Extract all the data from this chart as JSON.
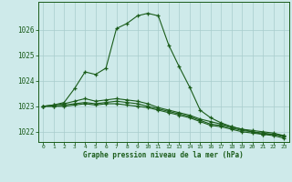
{
  "background_color": "#ceeaea",
  "plot_bg_color": "#ceeaea",
  "line_color": "#1a5c1a",
  "grid_color": "#a8cccc",
  "xlabel": "Graphe pression niveau de la mer (hPa)",
  "xlim": [
    -0.5,
    23.5
  ],
  "ylim": [
    1021.6,
    1027.1
  ],
  "yticks": [
    1022,
    1023,
    1024,
    1025,
    1026
  ],
  "xticks": [
    0,
    1,
    2,
    3,
    4,
    5,
    6,
    7,
    8,
    9,
    10,
    11,
    12,
    13,
    14,
    15,
    16,
    17,
    18,
    19,
    20,
    21,
    22,
    23
  ],
  "series1_x": [
    0,
    1,
    2,
    3,
    4,
    5,
    6,
    7,
    8,
    9,
    10,
    11,
    12,
    13,
    14,
    15,
    16,
    17,
    18,
    19,
    20,
    21,
    22,
    23
  ],
  "series1_y": [
    1023.0,
    1023.05,
    1023.15,
    1023.7,
    1024.35,
    1024.25,
    1024.5,
    1026.05,
    1026.25,
    1026.55,
    1026.65,
    1026.55,
    1025.4,
    1024.55,
    1023.75,
    1022.85,
    1022.55,
    1022.35,
    1022.2,
    1022.1,
    1022.0,
    1021.9,
    1021.9,
    1021.85
  ],
  "series2_x": [
    0,
    1,
    2,
    3,
    4,
    5,
    6,
    7,
    8,
    9,
    10,
    11,
    12,
    13,
    14,
    15,
    16,
    17,
    18,
    19,
    20,
    21,
    22,
    23
  ],
  "series2_y": [
    1023.0,
    1023.05,
    1023.1,
    1023.2,
    1023.3,
    1023.2,
    1023.25,
    1023.3,
    1023.25,
    1023.2,
    1023.1,
    1022.95,
    1022.85,
    1022.75,
    1022.65,
    1022.5,
    1022.4,
    1022.3,
    1022.2,
    1022.1,
    1022.05,
    1022.0,
    1021.95,
    1021.85
  ],
  "series3_x": [
    0,
    1,
    2,
    3,
    4,
    5,
    6,
    7,
    8,
    9,
    10,
    11,
    12,
    13,
    14,
    15,
    16,
    17,
    18,
    19,
    20,
    21,
    22,
    23
  ],
  "series3_y": [
    1023.0,
    1023.0,
    1023.05,
    1023.1,
    1023.15,
    1023.1,
    1023.15,
    1023.2,
    1023.15,
    1023.1,
    1023.0,
    1022.9,
    1022.8,
    1022.7,
    1022.6,
    1022.45,
    1022.3,
    1022.25,
    1022.15,
    1022.05,
    1022.0,
    1021.95,
    1021.9,
    1021.8
  ],
  "series4_x": [
    0,
    1,
    2,
    3,
    4,
    5,
    6,
    7,
    8,
    9,
    10,
    11,
    12,
    13,
    14,
    15,
    16,
    17,
    18,
    19,
    20,
    21,
    22,
    23
  ],
  "series4_y": [
    1023.0,
    1023.0,
    1023.0,
    1023.05,
    1023.1,
    1023.05,
    1023.1,
    1023.1,
    1023.05,
    1023.0,
    1022.95,
    1022.85,
    1022.75,
    1022.65,
    1022.55,
    1022.4,
    1022.25,
    1022.2,
    1022.1,
    1022.0,
    1021.95,
    1021.9,
    1021.85,
    1021.75
  ]
}
